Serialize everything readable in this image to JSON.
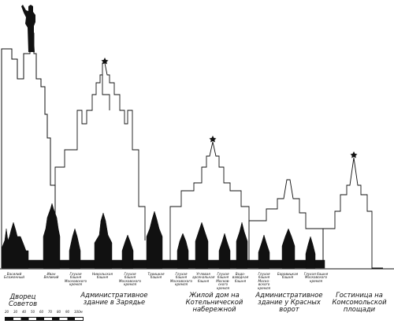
{
  "landmarks_small": [
    {
      "id": "vasily",
      "text": "Василий\nБлаженный"
    },
    {
      "id": "ivan",
      "text": "Иван\nВеликий"
    },
    {
      "id": "glukhaya-1",
      "text": "Глухая\nбашня\nМосковского\nкремля"
    },
    {
      "id": "nikolskaya",
      "text": "Никольская\nбашня"
    },
    {
      "id": "glukhaya-2",
      "text": "Глухая\nбашня\nМосковского\nкремля"
    },
    {
      "id": "troitskaya",
      "text": "Троицкая\nбашня"
    },
    {
      "id": "glukhaya-3",
      "text": "Глухая\nбашня\nМосковского\nкремля"
    },
    {
      "id": "uglovaya",
      "text": "Угловая\nарсенальная\nбашня"
    },
    {
      "id": "glukhaya-4",
      "text": "Глухая\nбашня\nМосков-\nского\nкремля"
    },
    {
      "id": "vodovzvodnaya",
      "text": "Водо-\nвзводная\nбашня"
    },
    {
      "id": "glukhaya-5",
      "text": "Глухая\nбашня\nМоско-\nвского\nкремля"
    },
    {
      "id": "borovitskaya",
      "text": "Боровицкая\nбашня"
    },
    {
      "id": "glukhaya-6",
      "text": "Глухая башня\nМосковского\nкремля"
    }
  ],
  "buildings": [
    {
      "id": "dvorets-sovetov",
      "text": "Дворец\nСоветов"
    },
    {
      "id": "zaryadye",
      "text": "Административное\nздание в Зарядье"
    },
    {
      "id": "kotelnicheskaya",
      "text": "Жилой дом на\nКотельнической\nнабережной"
    },
    {
      "id": "krasnye-vorota",
      "text": "Административное\nздание у Красных\nворот"
    },
    {
      "id": "komsomolskaya",
      "text": "Гостиница на\nКомсомольской\nплощади"
    }
  ],
  "scale": {
    "ticks": [
      "20",
      "30",
      "40",
      "50",
      "60",
      "70",
      "80",
      "90",
      "100м"
    ]
  },
  "colors": {
    "ink": "#111111",
    "paper": "#ffffff"
  }
}
